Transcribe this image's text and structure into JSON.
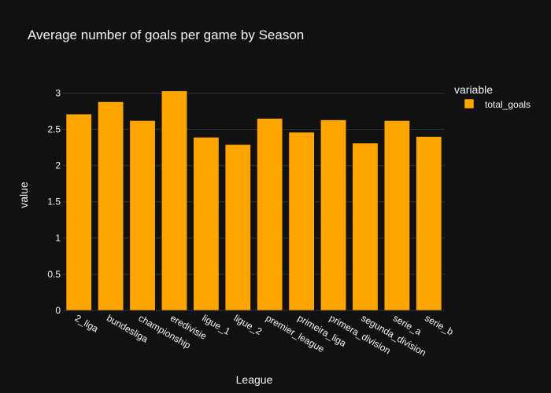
{
  "chart_data": {
    "type": "bar",
    "title": "Average number of goals per game by Season",
    "xlabel": "League",
    "ylabel": "value",
    "categories": [
      "2_liga",
      "bundesliga",
      "championship",
      "eredivisie",
      "ligue_1",
      "ligue_2",
      "premier_league",
      "primeira_liga",
      "primera_division",
      "segunda_division",
      "serie_a",
      "serie_b"
    ],
    "series": [
      {
        "name": "total_goals",
        "values": [
          2.71,
          2.88,
          2.62,
          3.03,
          2.39,
          2.29,
          2.65,
          2.46,
          2.63,
          2.31,
          2.62,
          2.4
        ]
      }
    ],
    "ylim": [
      0,
      3.2
    ],
    "yticks": [
      0,
      0.5,
      1,
      1.5,
      2,
      2.5,
      3
    ],
    "ytick_labels": [
      "0",
      "0.5",
      "1",
      "1.5",
      "2",
      "2.5",
      "3"
    ],
    "grid": true,
    "legend": {
      "title": "variable",
      "position": "top-right"
    },
    "colors": {
      "background": "#111111",
      "bar": "#FFA500",
      "grid": "#283442",
      "text": "#f2f5fa"
    }
  }
}
